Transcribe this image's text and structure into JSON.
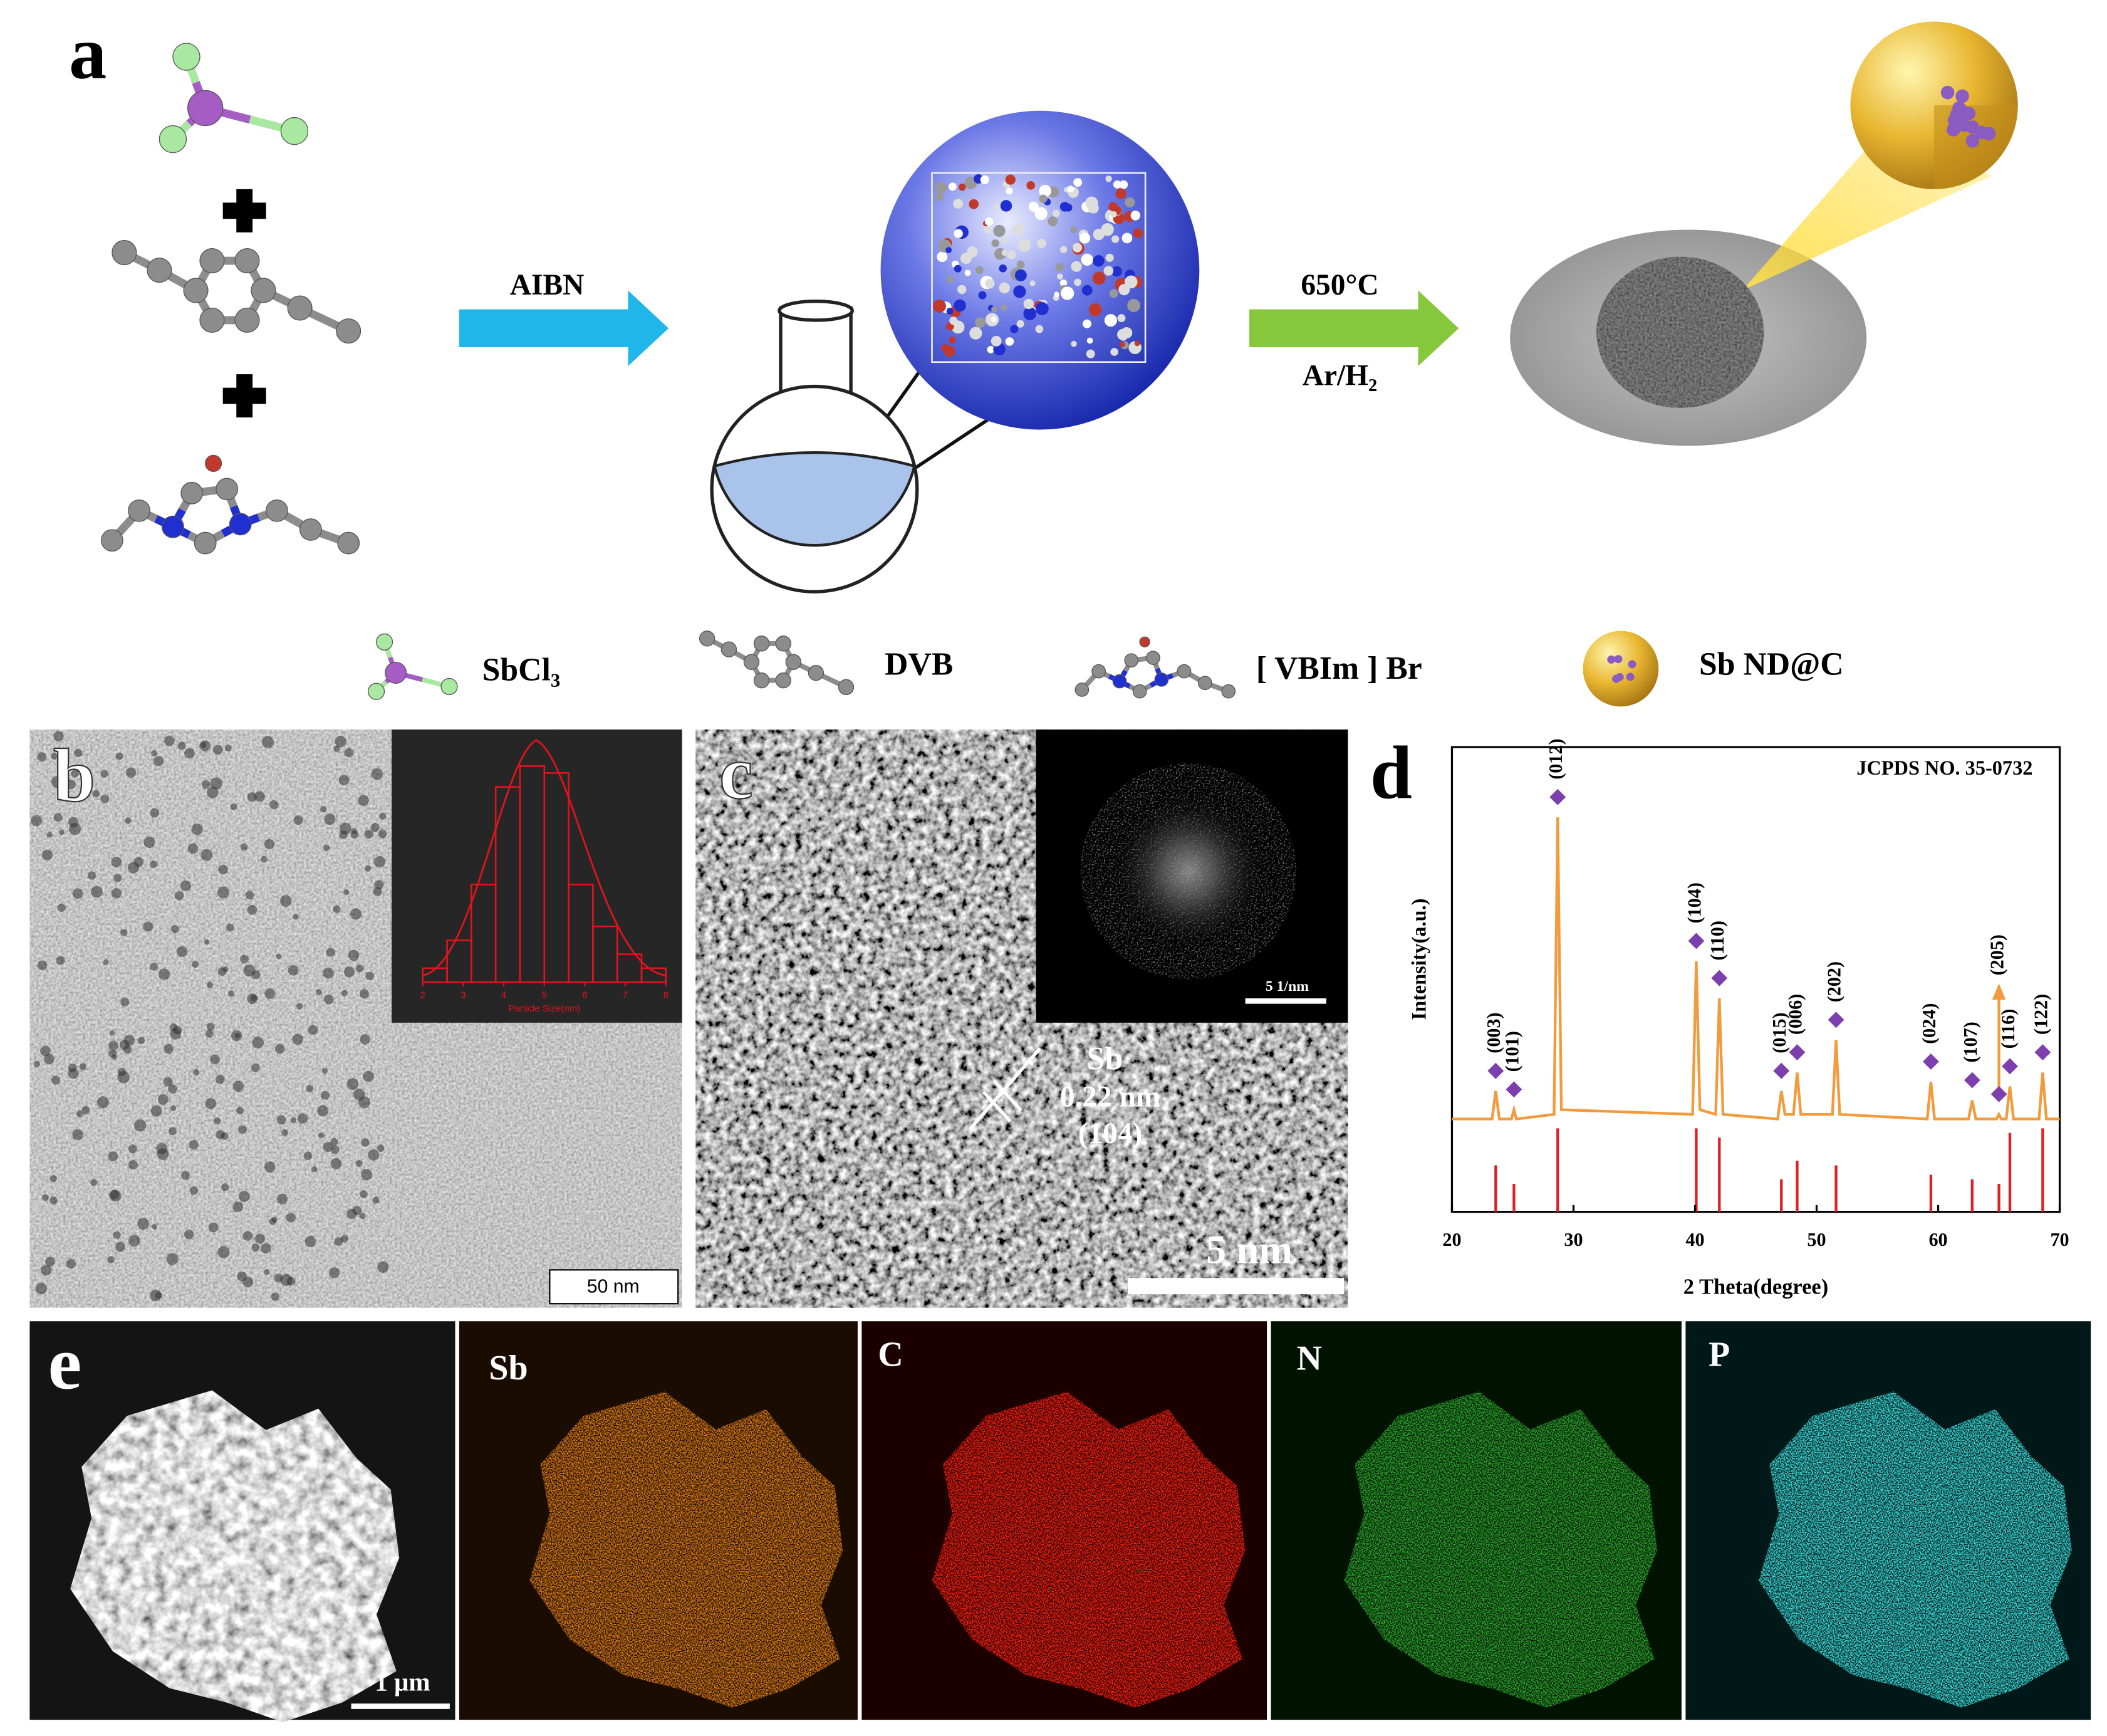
{
  "panels": {
    "a": {
      "letter": "a",
      "arrow_1": "AIBN",
      "arrow_2_top": "650°C",
      "arrow_2_bottom": "Ar/H₂",
      "legend": [
        "SbCl₃",
        "DVB",
        "[ VBIm ] Br",
        "Sb ND@C"
      ]
    },
    "b": {
      "letter": "b",
      "scale_bar": "50 nm"
    },
    "c": {
      "letter": "c",
      "inset_scale_bar": "5 1/nm",
      "annotation": [
        "Sb",
        "0.22 nm",
        "(104)"
      ],
      "scale_bar": "5 nm"
    },
    "d": {
      "letter": "d"
    },
    "e": {
      "letter": "e",
      "scale_bar": "1 μm",
      "maps": [
        "Sb",
        "C",
        "N",
        "P"
      ]
    }
  },
  "chart_data": [
    {
      "type": "histogram",
      "x_label": "Particle Size(nm)",
      "color": "#e0141e",
      "bins": [
        2.0,
        2.6,
        3.2,
        3.8,
        4.4,
        5.0,
        5.6,
        6.2,
        6.8,
        7.4,
        8.0
      ],
      "values": [
        2,
        6,
        14,
        28,
        31,
        30,
        14,
        8,
        4,
        2
      ],
      "xlim": [
        2,
        8
      ],
      "xticks": [
        2,
        3,
        4,
        5,
        6,
        7,
        8
      ]
    },
    {
      "type": "line",
      "annotation": "JCPDS NO. 35-0732",
      "x_label": "2 Theta(degree)",
      "y_label": "Intensity(a.u.)",
      "color": "#f29a3c",
      "x": [
        20,
        23.3,
        23.6,
        23.9,
        24.9,
        25.1,
        25.3,
        28.4,
        28.7,
        29.0,
        39.8,
        40.1,
        40.4,
        41.7,
        42.0,
        42.3,
        46.8,
        47.1,
        47.4,
        48.1,
        48.4,
        48.7,
        51.3,
        51.6,
        51.9,
        59.1,
        59.4,
        59.7,
        62.5,
        62.8,
        63.1,
        64.8,
        65.0,
        65.2,
        65.6,
        65.9,
        66.2,
        68.3,
        68.6,
        68.9,
        70
      ],
      "values": [
        20,
        20,
        26,
        20,
        20,
        22,
        20,
        21,
        85,
        22,
        21,
        54,
        22,
        21,
        46,
        21,
        20,
        26,
        21,
        21,
        30,
        21,
        21,
        37,
        21,
        20,
        28,
        20,
        20,
        24,
        20,
        20,
        21,
        20,
        20,
        27,
        20,
        20,
        30,
        20,
        20
      ],
      "reference_lines": {
        "color": "#e01e24",
        "x": [
          23.6,
          25.1,
          28.7,
          40.1,
          42.0,
          47.1,
          48.4,
          51.6,
          59.4,
          62.8,
          65.0,
          65.9,
          68.6
        ],
        "values": [
          10,
          6,
          18,
          18,
          16,
          7,
          11,
          10,
          8,
          7,
          6,
          17,
          18
        ]
      },
      "peak_labels": [
        "(003)",
        "(101)",
        "(012)",
        "(104)",
        "(110)",
        "(015)",
        "(006)",
        "(202)",
        "(024)",
        "(107)",
        "(205)",
        "(116)",
        "(122)"
      ],
      "marker_color": "#7e3fae",
      "xlim": [
        20,
        70
      ],
      "xticks": [
        20,
        30,
        40,
        50,
        60,
        70
      ]
    }
  ]
}
